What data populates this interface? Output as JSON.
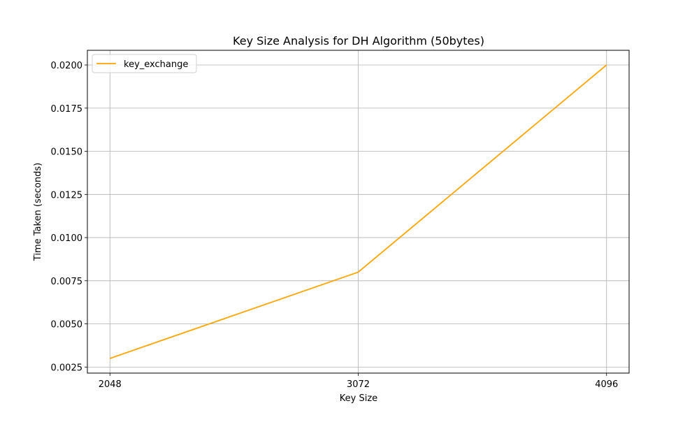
{
  "colors": {
    "series": "#ffa500",
    "grid": "#b0b0b0",
    "axes": "#000000",
    "background": "#ffffff",
    "legend_border": "#d0d0d0"
  },
  "chart_data": {
    "type": "line",
    "title": "Key Size Analysis for DH Algorithm (50bytes)",
    "xlabel": "Key Size",
    "ylabel": "Time Taken (seconds)",
    "x": [
      2048,
      3072,
      4096
    ],
    "x_tick_labels": [
      "2048",
      "3072",
      "4096"
    ],
    "y_ticks": [
      0.0025,
      0.005,
      0.0075,
      0.01,
      0.0125,
      0.015,
      0.0175,
      0.02
    ],
    "y_tick_labels": [
      "0.0025",
      "0.0050",
      "0.0075",
      "0.0100",
      "0.0125",
      "0.0150",
      "0.0175",
      "0.0200"
    ],
    "xlim": [
      1955,
      4189
    ],
    "ylim": [
      0.00215,
      0.02085
    ],
    "grid": true,
    "legend_position": "top-left",
    "series": [
      {
        "name": "key_exchange",
        "values": [
          0.003,
          0.008,
          0.02
        ]
      }
    ]
  }
}
